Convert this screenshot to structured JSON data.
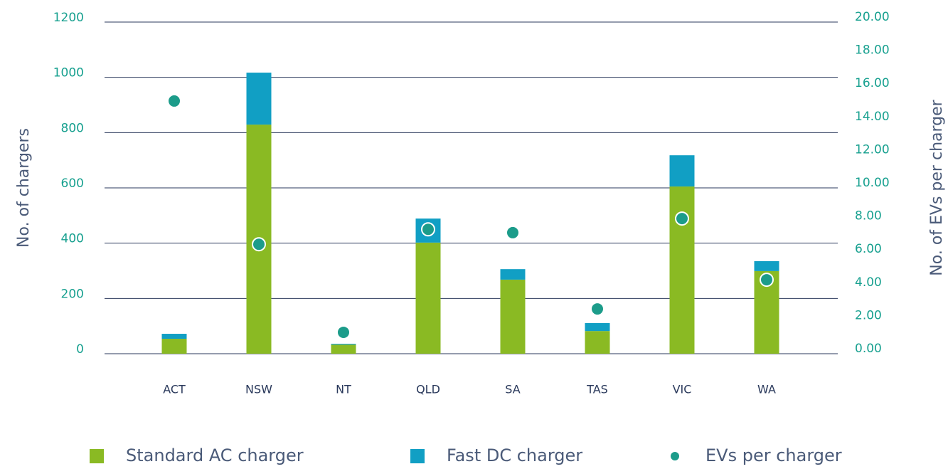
{
  "chart_data": {
    "type": "bar",
    "categories": [
      "ACT",
      "NSW",
      "NT",
      "QLD",
      "SA",
      "TAS",
      "VIC",
      "WA"
    ],
    "series": [
      {
        "name": "Standard AC charger",
        "color": "#8aba23",
        "values": [
          54,
          829,
          33,
          402,
          268,
          82,
          605,
          299
        ]
      },
      {
        "name": "Fast DC charger",
        "color": "#119fc4",
        "values": [
          18,
          188,
          3,
          87,
          38,
          29,
          113,
          36
        ]
      },
      {
        "name": "EVs per charger",
        "color": "#1c9c8a",
        "axis": "y2",
        "type": "scatter",
        "values": [
          15.24,
          6.6,
          1.29,
          7.5,
          7.3,
          2.7,
          8.15,
          4.46
        ]
      }
    ],
    "stacked": true,
    "ylabel": "No. of chargers",
    "y2label": "No. of EVs per charger",
    "ylim": [
      0,
      1200
    ],
    "yticks": [
      0,
      200,
      400,
      600,
      800,
      1000,
      1200
    ],
    "y2lim": [
      0,
      20
    ],
    "y2ticks": [
      {
        "value": 0,
        "label": "0.00"
      },
      {
        "value": 2,
        "label": "2.00"
      },
      {
        "value": 4,
        "label": "4.00"
      },
      {
        "value": 6,
        "label": "6.00"
      },
      {
        "value": 8,
        "label": "8.00"
      },
      {
        "value": 10,
        "label": "10.00"
      },
      {
        "value": 12,
        "label": "12.00"
      },
      {
        "value": 14,
        "label": "14.00"
      },
      {
        "value": 16,
        "label": "16.00"
      },
      {
        "value": 18,
        "label": "18.00"
      },
      {
        "value": 20,
        "label": "20.00"
      }
    ],
    "grid": true,
    "legend": "bottom"
  }
}
